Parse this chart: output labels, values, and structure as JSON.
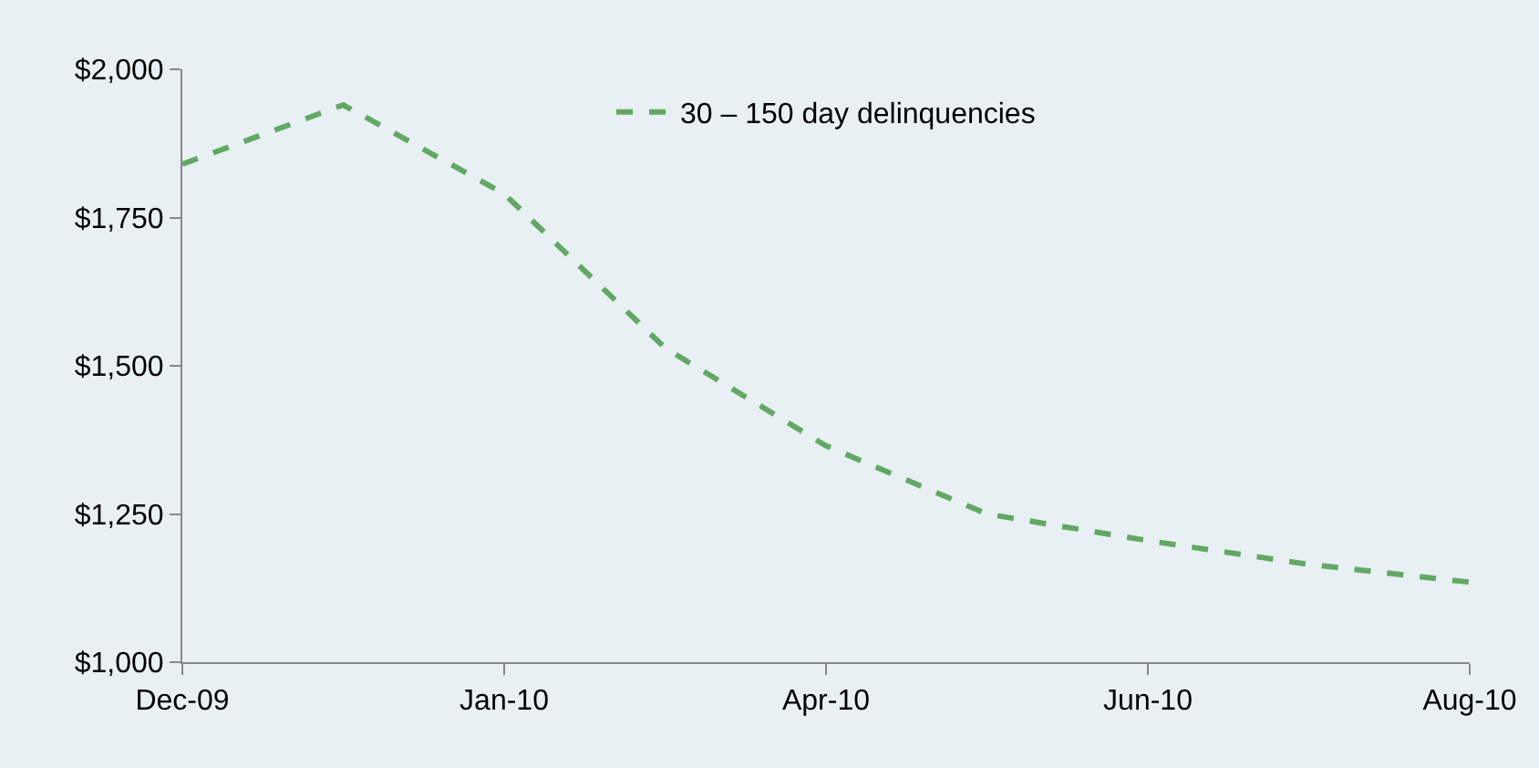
{
  "chart_data": {
    "type": "line",
    "categories": [
      "Dec-09",
      null,
      "Jan-10",
      null,
      "Apr-10",
      null,
      "Jun-10",
      null,
      "Aug-10"
    ],
    "series": [
      {
        "name": "30 – 150 day delinquencies",
        "color": "#62a864",
        "values": [
          1840,
          1940,
          1790,
          1530,
          1365,
          1250,
          1205,
          1165,
          1135
        ]
      }
    ],
    "ylim": [
      1000,
      2000
    ],
    "yticks": [
      {
        "value": 1000,
        "label": "$1,000"
      },
      {
        "value": 1250,
        "label": "$1,250"
      },
      {
        "value": 1500,
        "label": "$1,500"
      },
      {
        "value": 1750,
        "label": "$1,750"
      },
      {
        "value": 2000,
        "label": "$2,000"
      }
    ],
    "grid": false,
    "legend": "top",
    "marker": "none",
    "line_style": "dashed"
  }
}
